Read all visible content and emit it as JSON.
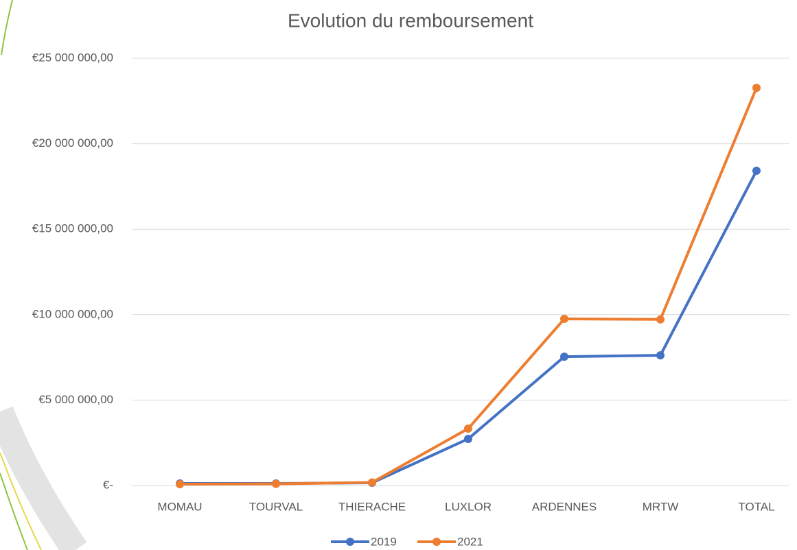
{
  "chart_data": {
    "type": "line",
    "title": "Evolution du remboursement",
    "categories": [
      "MOMAU",
      "TOURVAL",
      "THIERACHE",
      "LUXLOR",
      "ARDENNES",
      "MRTW",
      "TOTAL"
    ],
    "series": [
      {
        "name": "2019",
        "color": "#4472c4",
        "values": [
          120000,
          120000,
          160000,
          2730000,
          7540000,
          7620000,
          18420000
        ]
      },
      {
        "name": "2021",
        "color": "#ed7d31",
        "values": [
          80000,
          100000,
          180000,
          3330000,
          9750000,
          9720000,
          23270000
        ]
      }
    ],
    "ylim": [
      0,
      25000000
    ],
    "yticks": [
      {
        "value": 0,
        "label": "€-"
      },
      {
        "value": 5000000,
        "label": "€5 000 000,00"
      },
      {
        "value": 10000000,
        "label": "€10 000 000,00"
      },
      {
        "value": 15000000,
        "label": "€15 000 000,00"
      },
      {
        "value": 20000000,
        "label": "€20 000 000,00"
      },
      {
        "value": 25000000,
        "label": "€25 000 000,00"
      }
    ],
    "grid": true,
    "legend": "bottom"
  }
}
